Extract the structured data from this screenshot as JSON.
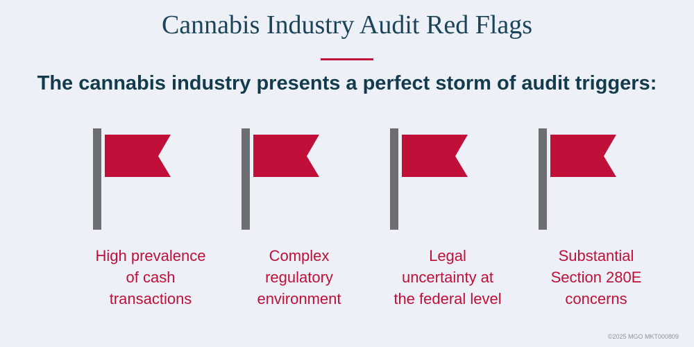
{
  "header": {
    "title": "Cannabis Industry Audit Red Flags",
    "subtitle": "The cannabis industry presents a perfect storm of audit triggers:"
  },
  "items": [
    {
      "label": [
        "High prevalence",
        "of cash",
        "transactions"
      ]
    },
    {
      "label": [
        "Complex",
        "regulatory",
        "environment"
      ]
    },
    {
      "label": [
        "Legal",
        "uncertainty at",
        "the federal level"
      ]
    },
    {
      "label": [
        "Substantial",
        "Section 280E",
        "concerns"
      ]
    }
  ],
  "footer": {
    "copyright": "©2025 MGO  MKT000809"
  }
}
